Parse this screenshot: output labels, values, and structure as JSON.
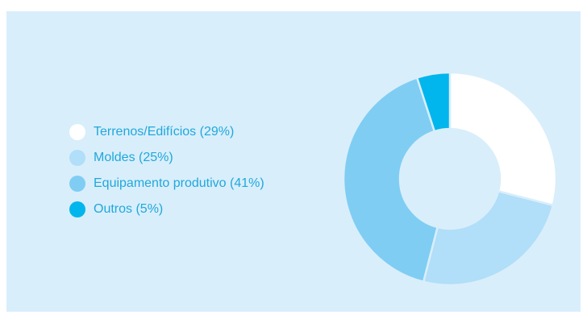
{
  "chart_data": {
    "type": "pie",
    "donut": true,
    "categories": [
      "Terrenos/Edifícios",
      "Moldes",
      "Equipamento produtivo",
      "Outros"
    ],
    "values": [
      29,
      25,
      41,
      5
    ],
    "legend_labels": [
      "Terrenos/Edifícios (29%)",
      "Moldes (25%)",
      "Equipamento produtivo (41%)",
      "Outros (5%)"
    ],
    "colors": [
      "#ffffff",
      "#b1def8",
      "#7fcdf3",
      "#00b6ec"
    ],
    "background": "#d9eefb",
    "text_color": "#1fa8dc",
    "legend_position": "left"
  }
}
